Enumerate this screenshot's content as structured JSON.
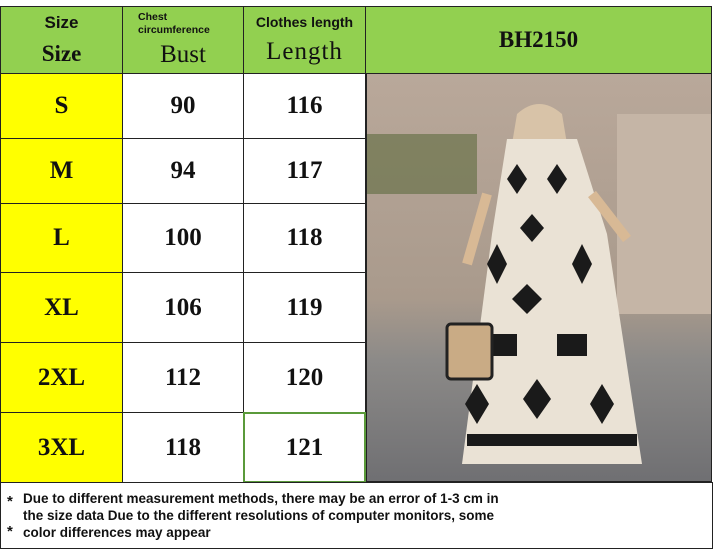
{
  "header": {
    "size_en": "Size",
    "size": "Size",
    "bust_en": "Chest circumference",
    "bust": "Bust",
    "length_en": "Clothes length",
    "length": "Length",
    "model": "BH2150"
  },
  "rows": [
    {
      "size": "S",
      "bust": "90",
      "length": "116"
    },
    {
      "size": "M",
      "bust": "94",
      "length": "117"
    },
    {
      "size": "L",
      "bust": "100",
      "length": "118"
    },
    {
      "size": "XL",
      "bust": "106",
      "length": "119"
    },
    {
      "size": "2XL",
      "bust": "112",
      "length": "120"
    },
    {
      "size": "3XL",
      "bust": "118",
      "length": "121"
    }
  ],
  "notes": {
    "star": "*",
    "text": "Due to different measurement methods, there may be an error of 1-3 cm in the size data Due to the different resolutions of computer monitors, some color differences may appear"
  },
  "colors": {
    "header": "#92d050",
    "size_column": "#ffff00",
    "selected_border": "#5a9a3a"
  }
}
